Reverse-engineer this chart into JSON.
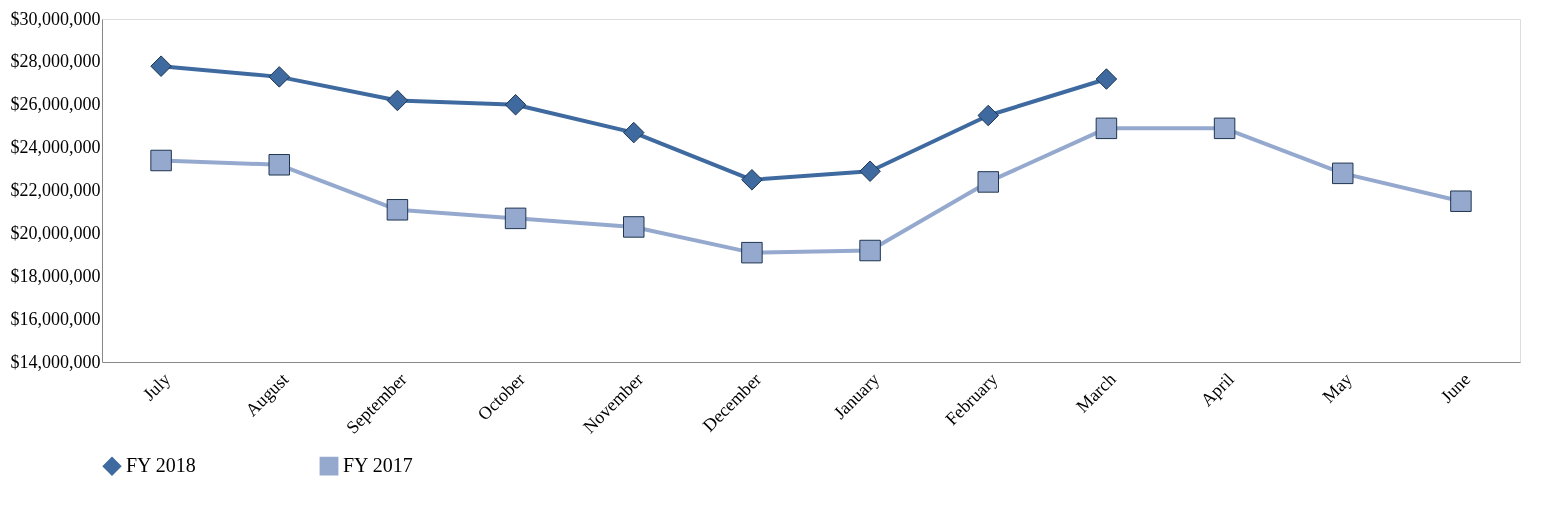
{
  "chart_data": {
    "type": "line",
    "categories": [
      "July",
      "August",
      "September",
      "October",
      "November",
      "December",
      "January",
      "February",
      "March",
      "April",
      "May",
      "June"
    ],
    "series": [
      {
        "name": "FY 2018",
        "color": "#3e6aa0",
        "marker": "diamond",
        "values": [
          27800000,
          27300000,
          26200000,
          26000000,
          24700000,
          22500000,
          22900000,
          25500000,
          27200000,
          null,
          null,
          null
        ]
      },
      {
        "name": "FY 2017",
        "color": "#95a9cf",
        "marker": "square",
        "values": [
          23400000,
          23200000,
          21100000,
          20700000,
          20300000,
          19100000,
          19200000,
          22400000,
          24900000,
          24900000,
          22800000,
          21500000
        ]
      }
    ],
    "ylim": [
      14000000,
      30000000
    ],
    "yticks": [
      {
        "value": 14000000,
        "label": "$14,000,000"
      },
      {
        "value": 16000000,
        "label": "$16,000,000"
      },
      {
        "value": 18000000,
        "label": "$18,000,000"
      },
      {
        "value": 20000000,
        "label": "$20,000,000"
      },
      {
        "value": 22000000,
        "label": "$22,000,000"
      },
      {
        "value": 24000000,
        "label": "$24,000,000"
      },
      {
        "value": 26000000,
        "label": "$26,000,000"
      },
      {
        "value": 28000000,
        "label": "$28,000,000"
      },
      {
        "value": 30000000,
        "label": "$30,000,000"
      }
    ],
    "grid": false,
    "legend": "bottom",
    "line_style": "solid"
  }
}
